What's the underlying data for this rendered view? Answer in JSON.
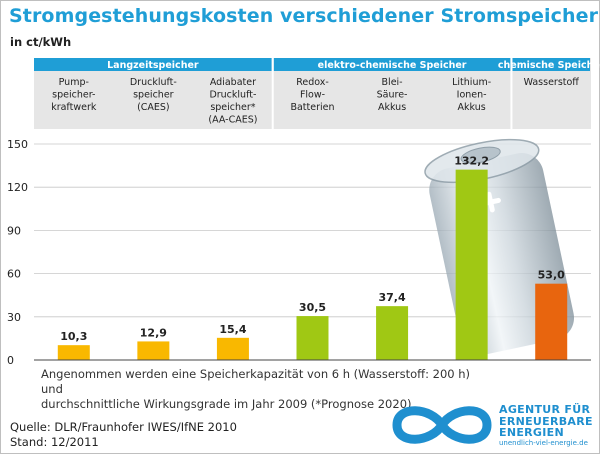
{
  "header": {
    "title": "Stromgestehungskosten verschiedener Stromspeicher",
    "unit": "in ct/kWh"
  },
  "chart_data": {
    "type": "bar",
    "ylim": [
      0,
      150
    ],
    "yticks": [
      "0",
      "30",
      "60",
      "90",
      "120",
      "150"
    ],
    "grid": true,
    "groups": [
      {
        "label": "Langzeitspeicher",
        "color": "#f9b800"
      },
      {
        "label": "elektro-chemische Speicher",
        "color": "#a0c814"
      },
      {
        "label": "chemische Speicher",
        "color": "#e8650e"
      }
    ],
    "categories": [
      "Pump-\nspeicher-\nkraftwerk",
      "Druckluft-\nspeicher\n(CAES)",
      "Adiabater\nDruckluft-\nspeicher*\n(AA-CAES)",
      "Redox-\nFlow-\nBatterien",
      "Blei-\nSäure-\nAkkus",
      "Lithium-\nIonen-\nAkkus",
      "Wasserstoff"
    ],
    "group_of_category": [
      0,
      0,
      0,
      1,
      1,
      1,
      2
    ],
    "values": [
      10.3,
      12.9,
      15.4,
      30.5,
      37.4,
      132.2,
      53.0
    ],
    "value_labels": [
      "10,3",
      "12,9",
      "15,4",
      "30,5",
      "37,4",
      "132,2",
      "53,0"
    ]
  },
  "note": {
    "line1": "Angenommen werden eine Speicherkapazität von 6 h (Wasserstoff: 200 h) und",
    "line2": "durchschnittliche Wirkungsgrade im Jahr 2009 (*Prognose 2020)."
  },
  "footer": {
    "source": "Quelle: DLR/Fraunhofer IWES/IfNE 2010",
    "date": "Stand: 12/2011"
  },
  "logo": {
    "line1": "AGENTUR FÜR",
    "line2": "ERNEUERBARE",
    "line3": "ENERGIEN",
    "url": "unendlich-viel-energie.de",
    "color": "#1f8fcf"
  }
}
